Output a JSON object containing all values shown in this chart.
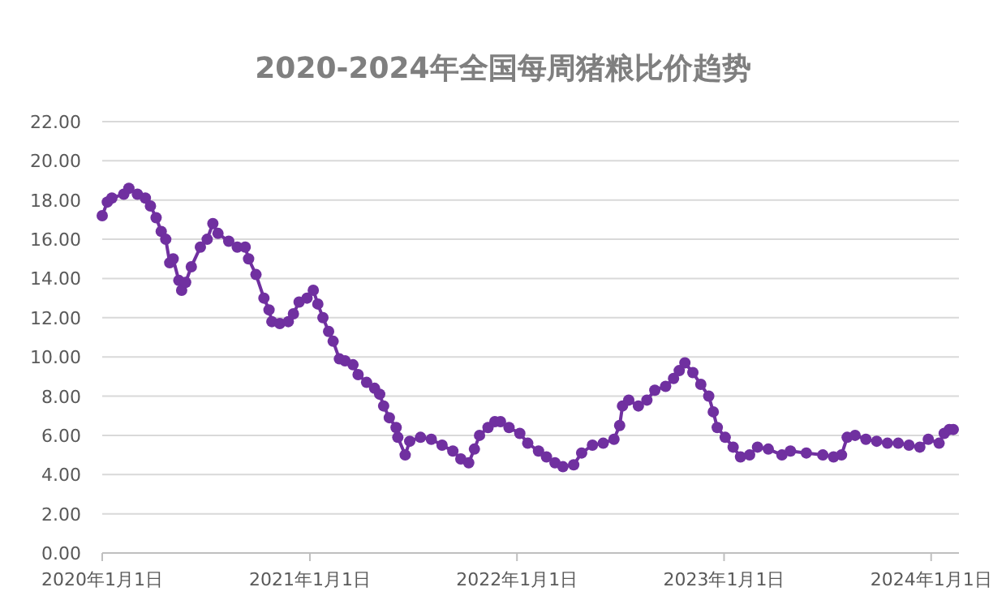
{
  "chart_data": {
    "type": "line",
    "title": "2020-2024年全国每周猪粮比价趋势",
    "marker": "circle",
    "line_style": "solid",
    "grid": "y",
    "xlim": [
      "2020-01-01",
      "2024-02-19"
    ],
    "xticks": [
      {
        "value": "2020-01-01",
        "label": "2020年1月1日"
      },
      {
        "value": "2021-01-01",
        "label": "2021年1月1日"
      },
      {
        "value": "2022-01-01",
        "label": "2022年1月1日"
      },
      {
        "value": "2023-01-01",
        "label": "2023年1月1日"
      },
      {
        "value": "2024-01-01",
        "label": "2024年1月1日"
      }
    ],
    "ylim": [
      0,
      22
    ],
    "yticks": [
      {
        "value": 0,
        "label": "0.00"
      },
      {
        "value": 2,
        "label": "2.00"
      },
      {
        "value": 4,
        "label": "4.00"
      },
      {
        "value": 6,
        "label": "6.00"
      },
      {
        "value": 8,
        "label": "8.00"
      },
      {
        "value": 10,
        "label": "10.00"
      },
      {
        "value": 12,
        "label": "12.00"
      },
      {
        "value": 14,
        "label": "14.00"
      },
      {
        "value": 16,
        "label": "16.00"
      },
      {
        "value": 18,
        "label": "18.00"
      },
      {
        "value": 20,
        "label": "20.00"
      },
      {
        "value": 22,
        "label": "22.00"
      }
    ],
    "series": [
      {
        "color": "#7030a0",
        "x": [
          "2020-01-01",
          "2020-01-10",
          "2020-01-18",
          "2020-02-08",
          "2020-02-17",
          "2020-03-03",
          "2020-03-17",
          "2020-03-26",
          "2020-04-05",
          "2020-04-14",
          "2020-04-22",
          "2020-04-29",
          "2020-05-05",
          "2020-05-15",
          "2020-05-20",
          "2020-05-27",
          "2020-06-06",
          "2020-06-22",
          "2020-07-04",
          "2020-07-14",
          "2020-07-23",
          "2020-08-11",
          "2020-08-26",
          "2020-09-09",
          "2020-09-15",
          "2020-09-28",
          "2020-10-12",
          "2020-10-21",
          "2020-10-26",
          "2020-11-09",
          "2020-11-24",
          "2020-12-03",
          "2020-12-13",
          "2020-12-27",
          "2021-01-07",
          "2021-01-15",
          "2021-01-24",
          "2021-02-03",
          "2021-02-11",
          "2021-02-22",
          "2021-03-04",
          "2021-03-18",
          "2021-03-27",
          "2021-04-11",
          "2021-04-25",
          "2021-05-04",
          "2021-05-11",
          "2021-05-21",
          "2021-06-02",
          "2021-06-05",
          "2021-06-18",
          "2021-06-26",
          "2021-07-15",
          "2021-08-03",
          "2021-08-22",
          "2021-09-10",
          "2021-09-24",
          "2021-10-08",
          "2021-10-18",
          "2021-10-27",
          "2021-11-11",
          "2021-11-23",
          "2021-12-03",
          "2021-12-18",
          "2022-01-06",
          "2022-01-20",
          "2022-02-08",
          "2022-02-22",
          "2022-03-09",
          "2022-03-23",
          "2022-04-11",
          "2022-04-25",
          "2022-05-14",
          "2022-06-02",
          "2022-06-21",
          "2022-07-01",
          "2022-07-06",
          "2022-07-17",
          "2022-08-03",
          "2022-08-18",
          "2022-09-01",
          "2022-09-20",
          "2022-10-04",
          "2022-10-14",
          "2022-10-24",
          "2022-11-07",
          "2022-11-21",
          "2022-12-05",
          "2022-12-13",
          "2022-12-20",
          "2023-01-03",
          "2023-01-17",
          "2023-01-30",
          "2023-02-15",
          "2023-03-01",
          "2023-03-20",
          "2023-04-13",
          "2023-04-28",
          "2023-05-26",
          "2023-06-24",
          "2023-07-13",
          "2023-07-27",
          "2023-08-06",
          "2023-08-20",
          "2023-09-08",
          "2023-09-27",
          "2023-10-16",
          "2023-11-04",
          "2023-11-23",
          "2023-12-12",
          "2023-12-27",
          "2024-01-15",
          "2024-01-24",
          "2024-02-02",
          "2024-02-09"
        ],
        "values": [
          17.2,
          17.9,
          18.1,
          18.3,
          18.6,
          18.3,
          18.1,
          17.7,
          17.1,
          16.4,
          16.0,
          14.8,
          15.0,
          13.9,
          13.4,
          13.8,
          14.6,
          15.6,
          16.0,
          16.8,
          16.3,
          15.9,
          15.6,
          15.6,
          15.0,
          14.2,
          13.0,
          12.4,
          11.8,
          11.7,
          11.8,
          12.2,
          12.8,
          13.0,
          13.4,
          12.7,
          12.0,
          11.3,
          10.8,
          9.9,
          9.8,
          9.6,
          9.1,
          8.7,
          8.4,
          8.1,
          7.5,
          6.9,
          6.4,
          5.9,
          5.0,
          5.7,
          5.9,
          5.8,
          5.5,
          5.2,
          4.8,
          4.6,
          5.3,
          6.0,
          6.4,
          6.7,
          6.7,
          6.4,
          6.1,
          5.6,
          5.2,
          4.9,
          4.6,
          4.4,
          4.5,
          5.1,
          5.5,
          5.6,
          5.8,
          6.5,
          7.5,
          7.8,
          7.5,
          7.8,
          8.3,
          8.5,
          8.9,
          9.3,
          9.7,
          9.2,
          8.6,
          8.0,
          7.2,
          6.4,
          5.9,
          5.4,
          4.9,
          5.0,
          5.4,
          5.3,
          5.0,
          5.2,
          5.1,
          5.0,
          4.9,
          5.0,
          5.9,
          6.0,
          5.8,
          5.7,
          5.6,
          5.6,
          5.5,
          5.4,
          5.8,
          5.6,
          6.1,
          6.3,
          6.3
        ]
      }
    ]
  }
}
